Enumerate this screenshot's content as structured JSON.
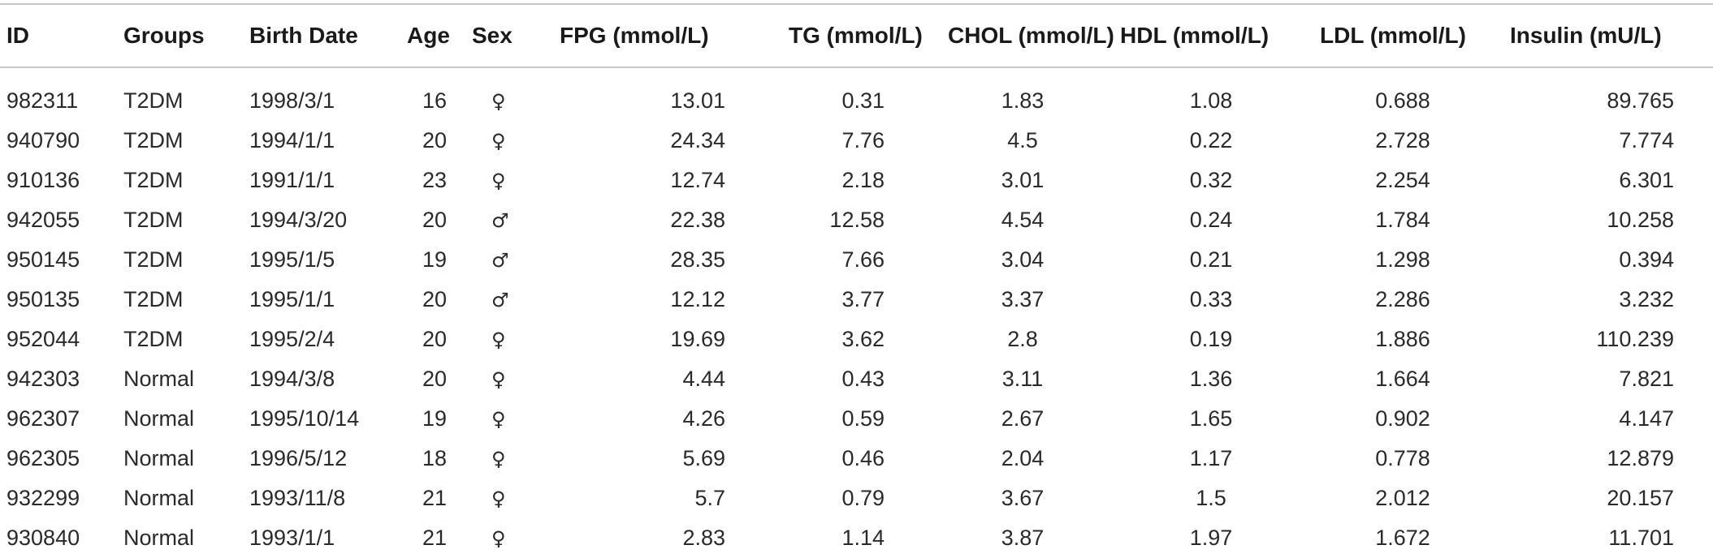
{
  "table": {
    "headers": {
      "id": "ID",
      "groups": "Groups",
      "birth_date": "Birth Date",
      "age": "Age",
      "sex": "Sex",
      "fpg": "FPG (mmol/L)",
      "tg": "TG (mmol/L)",
      "chol": "CHOL (mmol/L)",
      "hdl": "HDL (mmol/L)",
      "ldl": "LDL (mmol/L)",
      "insulin": "Insulin (mU/L)"
    },
    "rows": [
      {
        "id": "982311",
        "group": "T2DM",
        "birth": "1998/3/1",
        "age": "16",
        "sex": "♀",
        "fpg": "13.01",
        "tg": "0.31",
        "chol": "1.83",
        "hdl": "1.08",
        "ldl": "0.688",
        "insulin": "89.765"
      },
      {
        "id": "940790",
        "group": "T2DM",
        "birth": "1994/1/1",
        "age": "20",
        "sex": "♀",
        "fpg": "24.34",
        "tg": "7.76",
        "chol": "4.5",
        "hdl": "0.22",
        "ldl": "2.728",
        "insulin": "7.774"
      },
      {
        "id": "910136",
        "group": "T2DM",
        "birth": "1991/1/1",
        "age": "23",
        "sex": "♀",
        "fpg": "12.74",
        "tg": "2.18",
        "chol": "3.01",
        "hdl": "0.32",
        "ldl": "2.254",
        "insulin": "6.301"
      },
      {
        "id": "942055",
        "group": "T2DM",
        "birth": "1994/3/20",
        "age": "20",
        "sex": "♂",
        "fpg": "22.38",
        "tg": "12.58",
        "chol": "4.54",
        "hdl": "0.24",
        "ldl": "1.784",
        "insulin": "10.258"
      },
      {
        "id": "950145",
        "group": "T2DM",
        "birth": "1995/1/5",
        "age": "19",
        "sex": "♂",
        "fpg": "28.35",
        "tg": "7.66",
        "chol": "3.04",
        "hdl": "0.21",
        "ldl": "1.298",
        "insulin": "0.394"
      },
      {
        "id": "950135",
        "group": "T2DM",
        "birth": "1995/1/1",
        "age": "20",
        "sex": "♂",
        "fpg": "12.12",
        "tg": "3.77",
        "chol": "3.37",
        "hdl": "0.33",
        "ldl": "2.286",
        "insulin": "3.232"
      },
      {
        "id": "952044",
        "group": "T2DM",
        "birth": "1995/2/4",
        "age": "20",
        "sex": "♀",
        "fpg": "19.69",
        "tg": "3.62",
        "chol": "2.8",
        "hdl": "0.19",
        "ldl": "1.886",
        "insulin": "110.239"
      },
      {
        "id": "942303",
        "group": "Normal",
        "birth": "1994/3/8",
        "age": "20",
        "sex": "♀",
        "fpg": "4.44",
        "tg": "0.43",
        "chol": "3.11",
        "hdl": "1.36",
        "ldl": "1.664",
        "insulin": "7.821"
      },
      {
        "id": "962307",
        "group": "Normal",
        "birth": "1995/10/14",
        "age": "19",
        "sex": "♀",
        "fpg": "4.26",
        "tg": "0.59",
        "chol": "2.67",
        "hdl": "1.65",
        "ldl": "0.902",
        "insulin": "4.147"
      },
      {
        "id": "962305",
        "group": "Normal",
        "birth": "1996/5/12",
        "age": "18",
        "sex": "♀",
        "fpg": "5.69",
        "tg": "0.46",
        "chol": "2.04",
        "hdl": "1.17",
        "ldl": "0.778",
        "insulin": "12.879"
      },
      {
        "id": "932299",
        "group": "Normal",
        "birth": "1993/11/8",
        "age": "21",
        "sex": "♀",
        "fpg": "5.7",
        "tg": "0.79",
        "chol": "3.67",
        "hdl": "1.5",
        "ldl": "2.012",
        "insulin": "20.157"
      },
      {
        "id": "930840",
        "group": "Normal",
        "birth": "1993/1/1",
        "age": "21",
        "sex": "♀",
        "fpg": "2.83",
        "tg": "1.14",
        "chol": "3.87",
        "hdl": "1.97",
        "ldl": "1.672",
        "insulin": "11.701"
      }
    ]
  }
}
